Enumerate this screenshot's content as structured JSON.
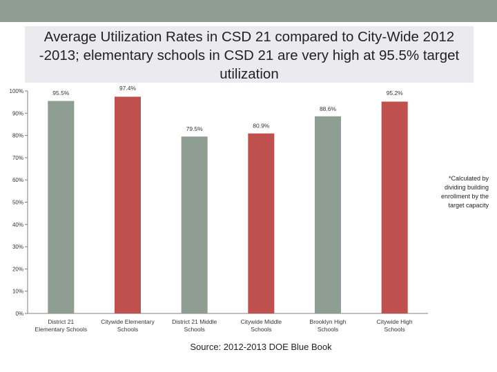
{
  "header": {
    "title": "Average Utilization Rates in CSD 21 compared to City-Wide 2012 -2013; elementary schools in CSD 21 are very high at 95.5% target utilization"
  },
  "note": "*Calculated by dividing building enrollment by the target capacity",
  "source": "Source: 2012-2013 DOE Blue Book",
  "colors": {
    "gray": "#8f9e93",
    "red": "#c0504d"
  },
  "chart_data": {
    "type": "bar",
    "title": "Average Utilization Rates in CSD 21 compared to City-Wide 2012 -2013; elementary schools in CSD 21 are very high at 95.5% target utilization",
    "categories": [
      [
        "District 21",
        "Elementary Schools"
      ],
      [
        "Citywide Elementary",
        "Schools"
      ],
      [
        "District 21 Middle",
        "Schools"
      ],
      [
        "Citywide Middle",
        "Schools"
      ],
      [
        "Brooklyn High",
        "Schools"
      ],
      [
        "Citywide High",
        "Schools"
      ]
    ],
    "values": [
      95.5,
      97.4,
      79.5,
      80.9,
      88.6,
      95.2
    ],
    "data_labels": [
      "95.5%",
      "97.4%",
      "79.5%",
      "80.9%",
      "88.6%",
      "95.2%"
    ],
    "bar_colors": [
      "gray",
      "red",
      "gray",
      "red",
      "gray",
      "red"
    ],
    "ylim": [
      0,
      100
    ],
    "yticks": [
      0,
      10,
      20,
      30,
      40,
      50,
      60,
      70,
      80,
      90,
      100
    ],
    "ytick_labels": [
      "0%",
      "10%",
      "20%",
      "30%",
      "40%",
      "50%",
      "60%",
      "70%",
      "80%",
      "90%",
      "100%"
    ],
    "xlabel": "",
    "ylabel": "",
    "grid": false,
    "legend": "none"
  }
}
